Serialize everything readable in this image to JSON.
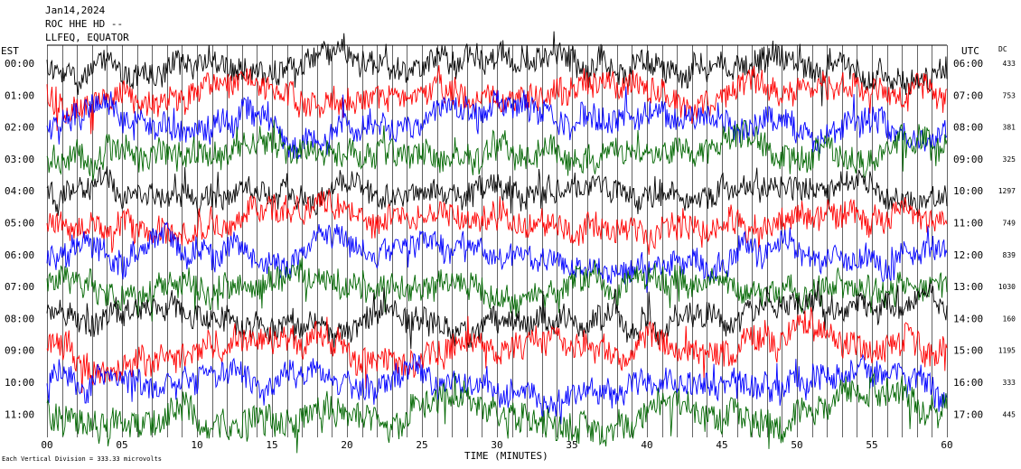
{
  "header": {
    "date": "Jan14,2024",
    "station": "ROC HHE HD --",
    "filter": "LLFEQ, EQUATOR"
  },
  "left_axis_label": "EST",
  "right_axis_label": "UTC",
  "dc_header": "DC",
  "footer_note": "Each Vertical Division =  333.33 microvolts",
  "colors": {
    "black": "#000000",
    "red": "#ff0000",
    "blue": "#0000ff",
    "green": "#006600",
    "grid": "#000000"
  },
  "chart_data": {
    "type": "line",
    "title": "Jan14,2024",
    "xlabel": "TIME (MINUTES)",
    "ylabel": "",
    "xlim": [
      0,
      60
    ],
    "x_ticks": [
      "00",
      "05",
      "10",
      "15",
      "20",
      "25",
      "30",
      "35",
      "40",
      "45",
      "50",
      "55",
      "60"
    ],
    "grid": true,
    "series": [
      {
        "est": "00:00",
        "utc": "06:00",
        "dc": "433",
        "color": "black",
        "amplitude": 0.85
      },
      {
        "est": "01:00",
        "utc": "07:00",
        "dc": "753",
        "color": "red",
        "amplitude": 0.9
      },
      {
        "est": "02:00",
        "utc": "08:00",
        "dc": "381",
        "color": "blue",
        "amplitude": 0.85
      },
      {
        "est": "03:00",
        "utc": "09:00",
        "dc": "325",
        "color": "green",
        "amplitude": 0.9
      },
      {
        "est": "04:00",
        "utc": "10:00",
        "dc": "1297",
        "color": "black",
        "amplitude": 0.75
      },
      {
        "est": "05:00",
        "utc": "11:00",
        "dc": "749",
        "color": "red",
        "amplitude": 0.85
      },
      {
        "est": "06:00",
        "utc": "12:00",
        "dc": "839",
        "color": "blue",
        "amplitude": 0.8
      },
      {
        "est": "07:00",
        "utc": "13:00",
        "dc": "1030",
        "color": "green",
        "amplitude": 0.85
      },
      {
        "est": "08:00",
        "utc": "14:00",
        "dc": "160",
        "color": "black",
        "amplitude": 0.8
      },
      {
        "est": "09:00",
        "utc": "15:00",
        "dc": "1195",
        "color": "red",
        "amplitude": 0.9
      },
      {
        "est": "10:00",
        "utc": "16:00",
        "dc": "333",
        "color": "blue",
        "amplitude": 0.85
      },
      {
        "est": "11:00",
        "utc": "17:00",
        "dc": "445",
        "color": "green",
        "amplitude": 1.0
      }
    ]
  }
}
